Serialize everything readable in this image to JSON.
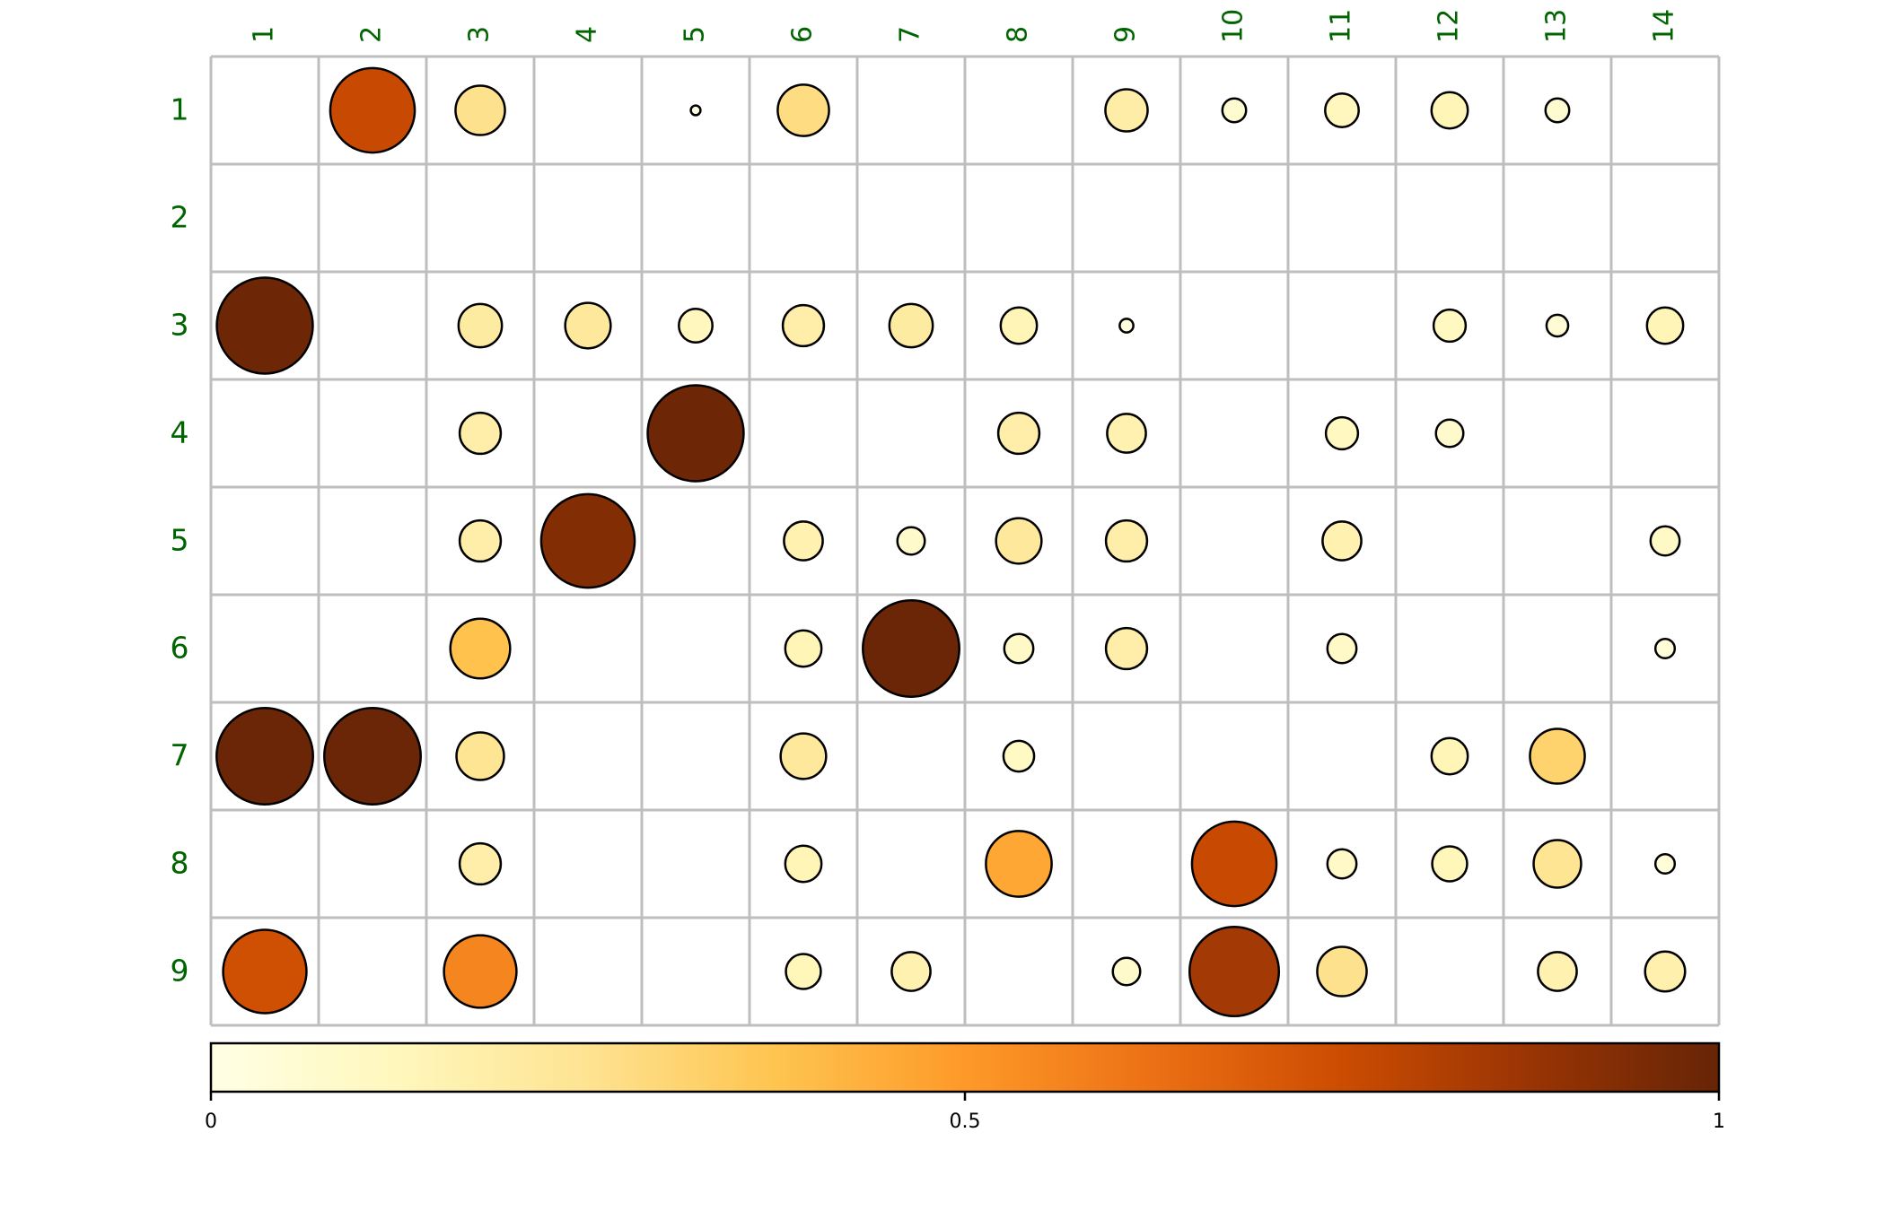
{
  "chart_data": {
    "type": "heatmap",
    "title": "",
    "x_tick_labels": [
      "1",
      "2",
      "3",
      "4",
      "5",
      "6",
      "7",
      "8",
      "9",
      "10",
      "11",
      "12",
      "13",
      "14"
    ],
    "y_tick_labels": [
      "1",
      "2",
      "3",
      "4",
      "5",
      "6",
      "7",
      "8",
      "9"
    ],
    "grid": true,
    "marker": "circle",
    "cells": [
      {
        "row": 1,
        "col": 2,
        "value": 0.76
      },
      {
        "row": 1,
        "col": 3,
        "value": 0.26
      },
      {
        "row": 1,
        "col": 5,
        "value": 0.01
      },
      {
        "row": 1,
        "col": 6,
        "value": 0.28
      },
      {
        "row": 1,
        "col": 9,
        "value": 0.19
      },
      {
        "row": 1,
        "col": 10,
        "value": 0.06
      },
      {
        "row": 1,
        "col": 11,
        "value": 0.12
      },
      {
        "row": 1,
        "col": 12,
        "value": 0.14
      },
      {
        "row": 1,
        "col": 13,
        "value": 0.06
      },
      {
        "row": 3,
        "col": 1,
        "value": 0.98
      },
      {
        "row": 3,
        "col": 3,
        "value": 0.2
      },
      {
        "row": 3,
        "col": 4,
        "value": 0.22
      },
      {
        "row": 3,
        "col": 5,
        "value": 0.12
      },
      {
        "row": 3,
        "col": 6,
        "value": 0.18
      },
      {
        "row": 3,
        "col": 7,
        "value": 0.2
      },
      {
        "row": 3,
        "col": 8,
        "value": 0.14
      },
      {
        "row": 3,
        "col": 9,
        "value": 0.02
      },
      {
        "row": 3,
        "col": 12,
        "value": 0.11
      },
      {
        "row": 3,
        "col": 13,
        "value": 0.05
      },
      {
        "row": 3,
        "col": 14,
        "value": 0.14
      },
      {
        "row": 4,
        "col": 3,
        "value": 0.18
      },
      {
        "row": 4,
        "col": 5,
        "value": 0.98
      },
      {
        "row": 4,
        "col": 8,
        "value": 0.18
      },
      {
        "row": 4,
        "col": 9,
        "value": 0.16
      },
      {
        "row": 4,
        "col": 11,
        "value": 0.11
      },
      {
        "row": 4,
        "col": 12,
        "value": 0.08
      },
      {
        "row": 5,
        "col": 3,
        "value": 0.18
      },
      {
        "row": 5,
        "col": 4,
        "value": 0.93
      },
      {
        "row": 5,
        "col": 6,
        "value": 0.16
      },
      {
        "row": 5,
        "col": 7,
        "value": 0.08
      },
      {
        "row": 5,
        "col": 8,
        "value": 0.22
      },
      {
        "row": 5,
        "col": 9,
        "value": 0.18
      },
      {
        "row": 5,
        "col": 11,
        "value": 0.16
      },
      {
        "row": 5,
        "col": 14,
        "value": 0.09
      },
      {
        "row": 6,
        "col": 3,
        "value": 0.38
      },
      {
        "row": 6,
        "col": 6,
        "value": 0.14
      },
      {
        "row": 6,
        "col": 7,
        "value": 0.99
      },
      {
        "row": 6,
        "col": 8,
        "value": 0.09
      },
      {
        "row": 6,
        "col": 9,
        "value": 0.18
      },
      {
        "row": 6,
        "col": 11,
        "value": 0.09
      },
      {
        "row": 6,
        "col": 14,
        "value": 0.04
      },
      {
        "row": 7,
        "col": 1,
        "value": 0.99
      },
      {
        "row": 7,
        "col": 2,
        "value": 0.99
      },
      {
        "row": 7,
        "col": 3,
        "value": 0.24
      },
      {
        "row": 7,
        "col": 6,
        "value": 0.22
      },
      {
        "row": 7,
        "col": 8,
        "value": 0.1
      },
      {
        "row": 7,
        "col": 12,
        "value": 0.14
      },
      {
        "row": 7,
        "col": 13,
        "value": 0.32
      },
      {
        "row": 8,
        "col": 3,
        "value": 0.18
      },
      {
        "row": 8,
        "col": 6,
        "value": 0.14
      },
      {
        "row": 8,
        "col": 8,
        "value": 0.46
      },
      {
        "row": 8,
        "col": 10,
        "value": 0.76
      },
      {
        "row": 8,
        "col": 11,
        "value": 0.09
      },
      {
        "row": 8,
        "col": 12,
        "value": 0.13
      },
      {
        "row": 8,
        "col": 13,
        "value": 0.24
      },
      {
        "row": 8,
        "col": 14,
        "value": 0.04
      },
      {
        "row": 9,
        "col": 1,
        "value": 0.74
      },
      {
        "row": 9,
        "col": 3,
        "value": 0.56
      },
      {
        "row": 9,
        "col": 6,
        "value": 0.13
      },
      {
        "row": 9,
        "col": 7,
        "value": 0.16
      },
      {
        "row": 9,
        "col": 9,
        "value": 0.08
      },
      {
        "row": 9,
        "col": 10,
        "value": 0.85
      },
      {
        "row": 9,
        "col": 11,
        "value": 0.26
      },
      {
        "row": 9,
        "col": 13,
        "value": 0.16
      },
      {
        "row": 9,
        "col": 14,
        "value": 0.17
      }
    ],
    "colorbar": {
      "range": [
        0,
        1
      ],
      "tick_values": [
        0,
        0.5,
        1
      ],
      "tick_labels": [
        "0",
        "0.5",
        "1"
      ],
      "colors": [
        "#FFFFE5",
        "#FFF7BC",
        "#FEE391",
        "#FEC44F",
        "#FE9929",
        "#EC7014",
        "#CC4C02",
        "#993404",
        "#662506"
      ]
    },
    "tick_label_color": "#006400",
    "grid_color": "#BEBEBE"
  }
}
